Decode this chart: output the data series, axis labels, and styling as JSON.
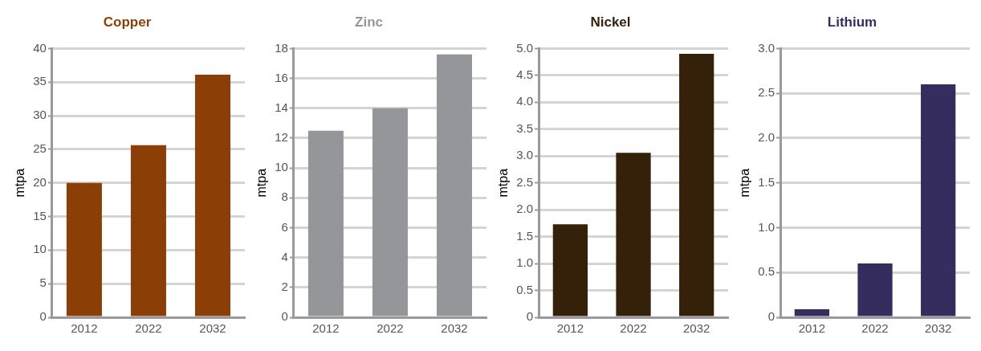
{
  "chart_data": [
    {
      "type": "bar",
      "title": "Copper",
      "ylabel": "mtpa",
      "categories": [
        "2012",
        "2022",
        "2032"
      ],
      "values": [
        20,
        25.6,
        36.1
      ],
      "color": "#8b3e05",
      "ylim": [
        0,
        40
      ],
      "yticks": [
        0,
        5,
        10,
        15,
        20,
        25,
        30,
        35,
        40
      ],
      "grid": "y",
      "legend": false
    },
    {
      "type": "bar",
      "title": "Zinc",
      "ylabel": "mtpa",
      "categories": [
        "2012",
        "2022",
        "2032"
      ],
      "values": [
        12.5,
        14.0,
        17.6
      ],
      "color": "#95969a",
      "ylim": [
        0,
        18
      ],
      "yticks": [
        0,
        2,
        4,
        6,
        8,
        10,
        12,
        14,
        16,
        18
      ],
      "grid": "y",
      "legend": false
    },
    {
      "type": "bar",
      "title": "Nickel",
      "ylabel": "mtpa",
      "categories": [
        "2012",
        "2022",
        "2032"
      ],
      "values": [
        1.73,
        3.06,
        4.9
      ],
      "color": "#35210a",
      "ylim": [
        0,
        5
      ],
      "yticks": [
        0,
        {
          "value": 0.5,
          "label": "0.5"
        },
        {
          "value": 1,
          "label": "1.0"
        },
        {
          "value": 1.5,
          "label": "1.5"
        },
        {
          "value": 2,
          "label": "2.0"
        },
        {
          "value": 2.5,
          "label": "2.5"
        },
        {
          "value": 3,
          "label": "3.0"
        },
        {
          "value": 3.5,
          "label": "3.5"
        },
        {
          "value": 4,
          "label": "4.0"
        },
        {
          "value": 4.5,
          "label": "4.5"
        },
        {
          "value": 5,
          "label": "5.0"
        }
      ],
      "grid": "y",
      "legend": false
    },
    {
      "type": "bar",
      "title": "Lithium",
      "ylabel": "mtpa",
      "categories": [
        "2012",
        "2022",
        "2032"
      ],
      "values": [
        0.09,
        0.6,
        2.6
      ],
      "color": "#352d5e",
      "ylim": [
        0,
        3
      ],
      "yticks": [
        0,
        {
          "value": 0.5,
          "label": "0.5"
        },
        {
          "value": 1,
          "label": "1.0"
        },
        {
          "value": 1.5,
          "label": "1.5"
        },
        {
          "value": 2,
          "label": "2.0"
        },
        {
          "value": 2.5,
          "label": "2.5"
        },
        {
          "value": 3,
          "label": "3.0"
        }
      ],
      "grid": "y",
      "legend": false
    }
  ]
}
